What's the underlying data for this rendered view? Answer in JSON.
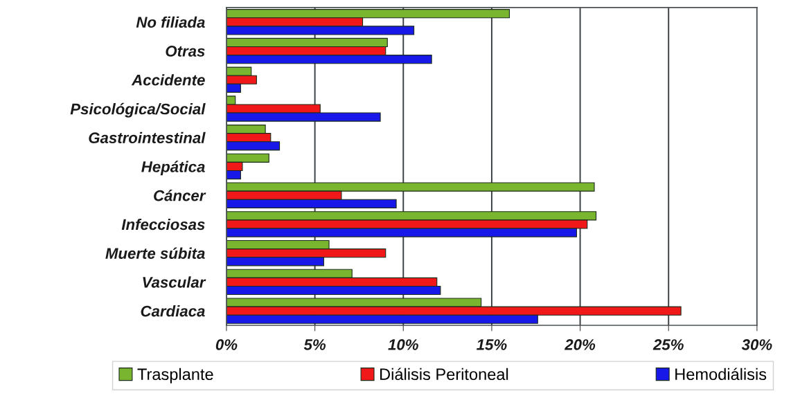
{
  "chart_data": {
    "type": "bar",
    "orientation": "horizontal",
    "categories": [
      "No filiada",
      "Otras",
      "Accidente",
      "Psicológica/Social",
      "Gastrointestinal",
      "Hepática",
      "Cáncer",
      "Infecciosas",
      "Muerte súbita",
      "Vascular",
      "Cardiaca"
    ],
    "series": [
      {
        "name": "Trasplante",
        "color": "#7ab530",
        "values": [
          16.0,
          9.1,
          1.4,
          0.5,
          2.2,
          2.4,
          20.8,
          20.9,
          5.8,
          7.1,
          14.4
        ]
      },
      {
        "name": "Diálisis Peritoneal",
        "color": "#f01818",
        "values": [
          7.7,
          9.0,
          1.7,
          5.3,
          2.5,
          0.9,
          6.5,
          20.4,
          9.0,
          11.9,
          25.7
        ]
      },
      {
        "name": "Hemodiálisis",
        "color": "#1818e8",
        "values": [
          10.6,
          11.6,
          0.8,
          8.7,
          3.0,
          0.8,
          9.6,
          19.8,
          5.5,
          12.1,
          17.6
        ]
      }
    ],
    "xlim": [
      0,
      30
    ],
    "xticks": [
      {
        "value": 0,
        "label": "0%"
      },
      {
        "value": 5,
        "label": "5%"
      },
      {
        "value": 10,
        "label": "10%"
      },
      {
        "value": 15,
        "label": "15%"
      },
      {
        "value": 20,
        "label": "20%"
      },
      {
        "value": 25,
        "label": "25%"
      },
      {
        "value": 30,
        "label": "30%"
      }
    ],
    "grid": "x",
    "legend": "bottom"
  }
}
